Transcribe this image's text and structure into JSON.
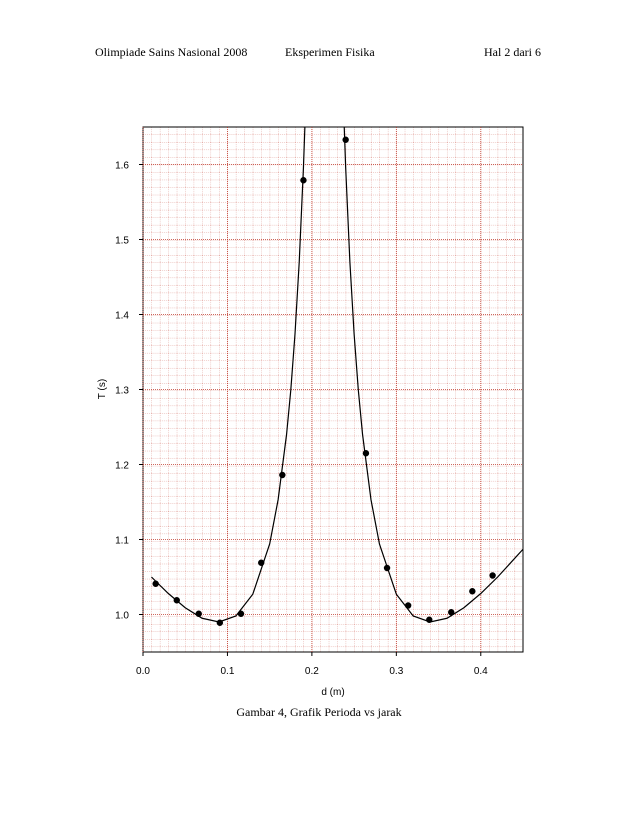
{
  "header": {
    "left": "Olimpiade Sains Nasional 2008",
    "center": "Eksperimen Fisika",
    "right": "Hal 2 dari 6"
  },
  "caption": "Gambar 4, Grafik Perioda vs jarak",
  "chart_data": {
    "type": "scatter",
    "xlabel": "d (m)",
    "ylabel": "T (s)",
    "xlim": [
      0,
      0.45
    ],
    "ylim": [
      0.95,
      1.65
    ],
    "xticks": [
      {
        "value": 0,
        "label": "0.0"
      },
      0.1,
      0.2,
      0.3,
      0.4
    ],
    "yticks": [
      {
        "value": 1,
        "label": "1.0"
      },
      1.1,
      1.2,
      1.3,
      1.4,
      1.5,
      1.6
    ],
    "grid": true,
    "grid_color": "#c0392b",
    "series": [
      {
        "style": "points",
        "color": "#000000",
        "x": [
          0.015,
          0.04,
          0.066,
          0.091,
          0.116,
          0.14,
          0.165,
          0.19,
          0.24,
          0.264,
          0.289,
          0.314,
          0.339,
          0.365,
          0.39,
          0.414
        ],
        "values": [
          1.041,
          1.019,
          1.001,
          0.989,
          1.001,
          1.069,
          1.186,
          1.579,
          1.633,
          1.215,
          1.062,
          1.012,
          0.993,
          1.003,
          1.031,
          1.052
        ]
      },
      {
        "style": "line",
        "color": "#000000",
        "x": [
          0.01,
          0.03,
          0.05,
          0.07,
          0.09,
          0.11,
          0.13,
          0.15,
          0.16,
          0.17,
          0.175,
          0.18,
          0.185,
          0.19,
          0.1917,
          0.215,
          0.2383,
          0.24,
          0.245,
          0.25,
          0.255,
          0.26,
          0.27,
          0.28,
          0.3,
          0.32,
          0.34,
          0.36,
          0.38,
          0.4,
          0.42,
          0.45
        ],
        "values": [
          1.05,
          1.028,
          1.009,
          0.995,
          0.99,
          0.998,
          1.027,
          1.094,
          1.153,
          1.24,
          1.299,
          1.374,
          1.47,
          1.596,
          1.65,
          null,
          1.65,
          1.596,
          1.47,
          1.374,
          1.299,
          1.24,
          1.153,
          1.094,
          1.027,
          0.998,
          0.99,
          0.995,
          1.009,
          1.028,
          1.05,
          1.087
        ]
      }
    ]
  }
}
